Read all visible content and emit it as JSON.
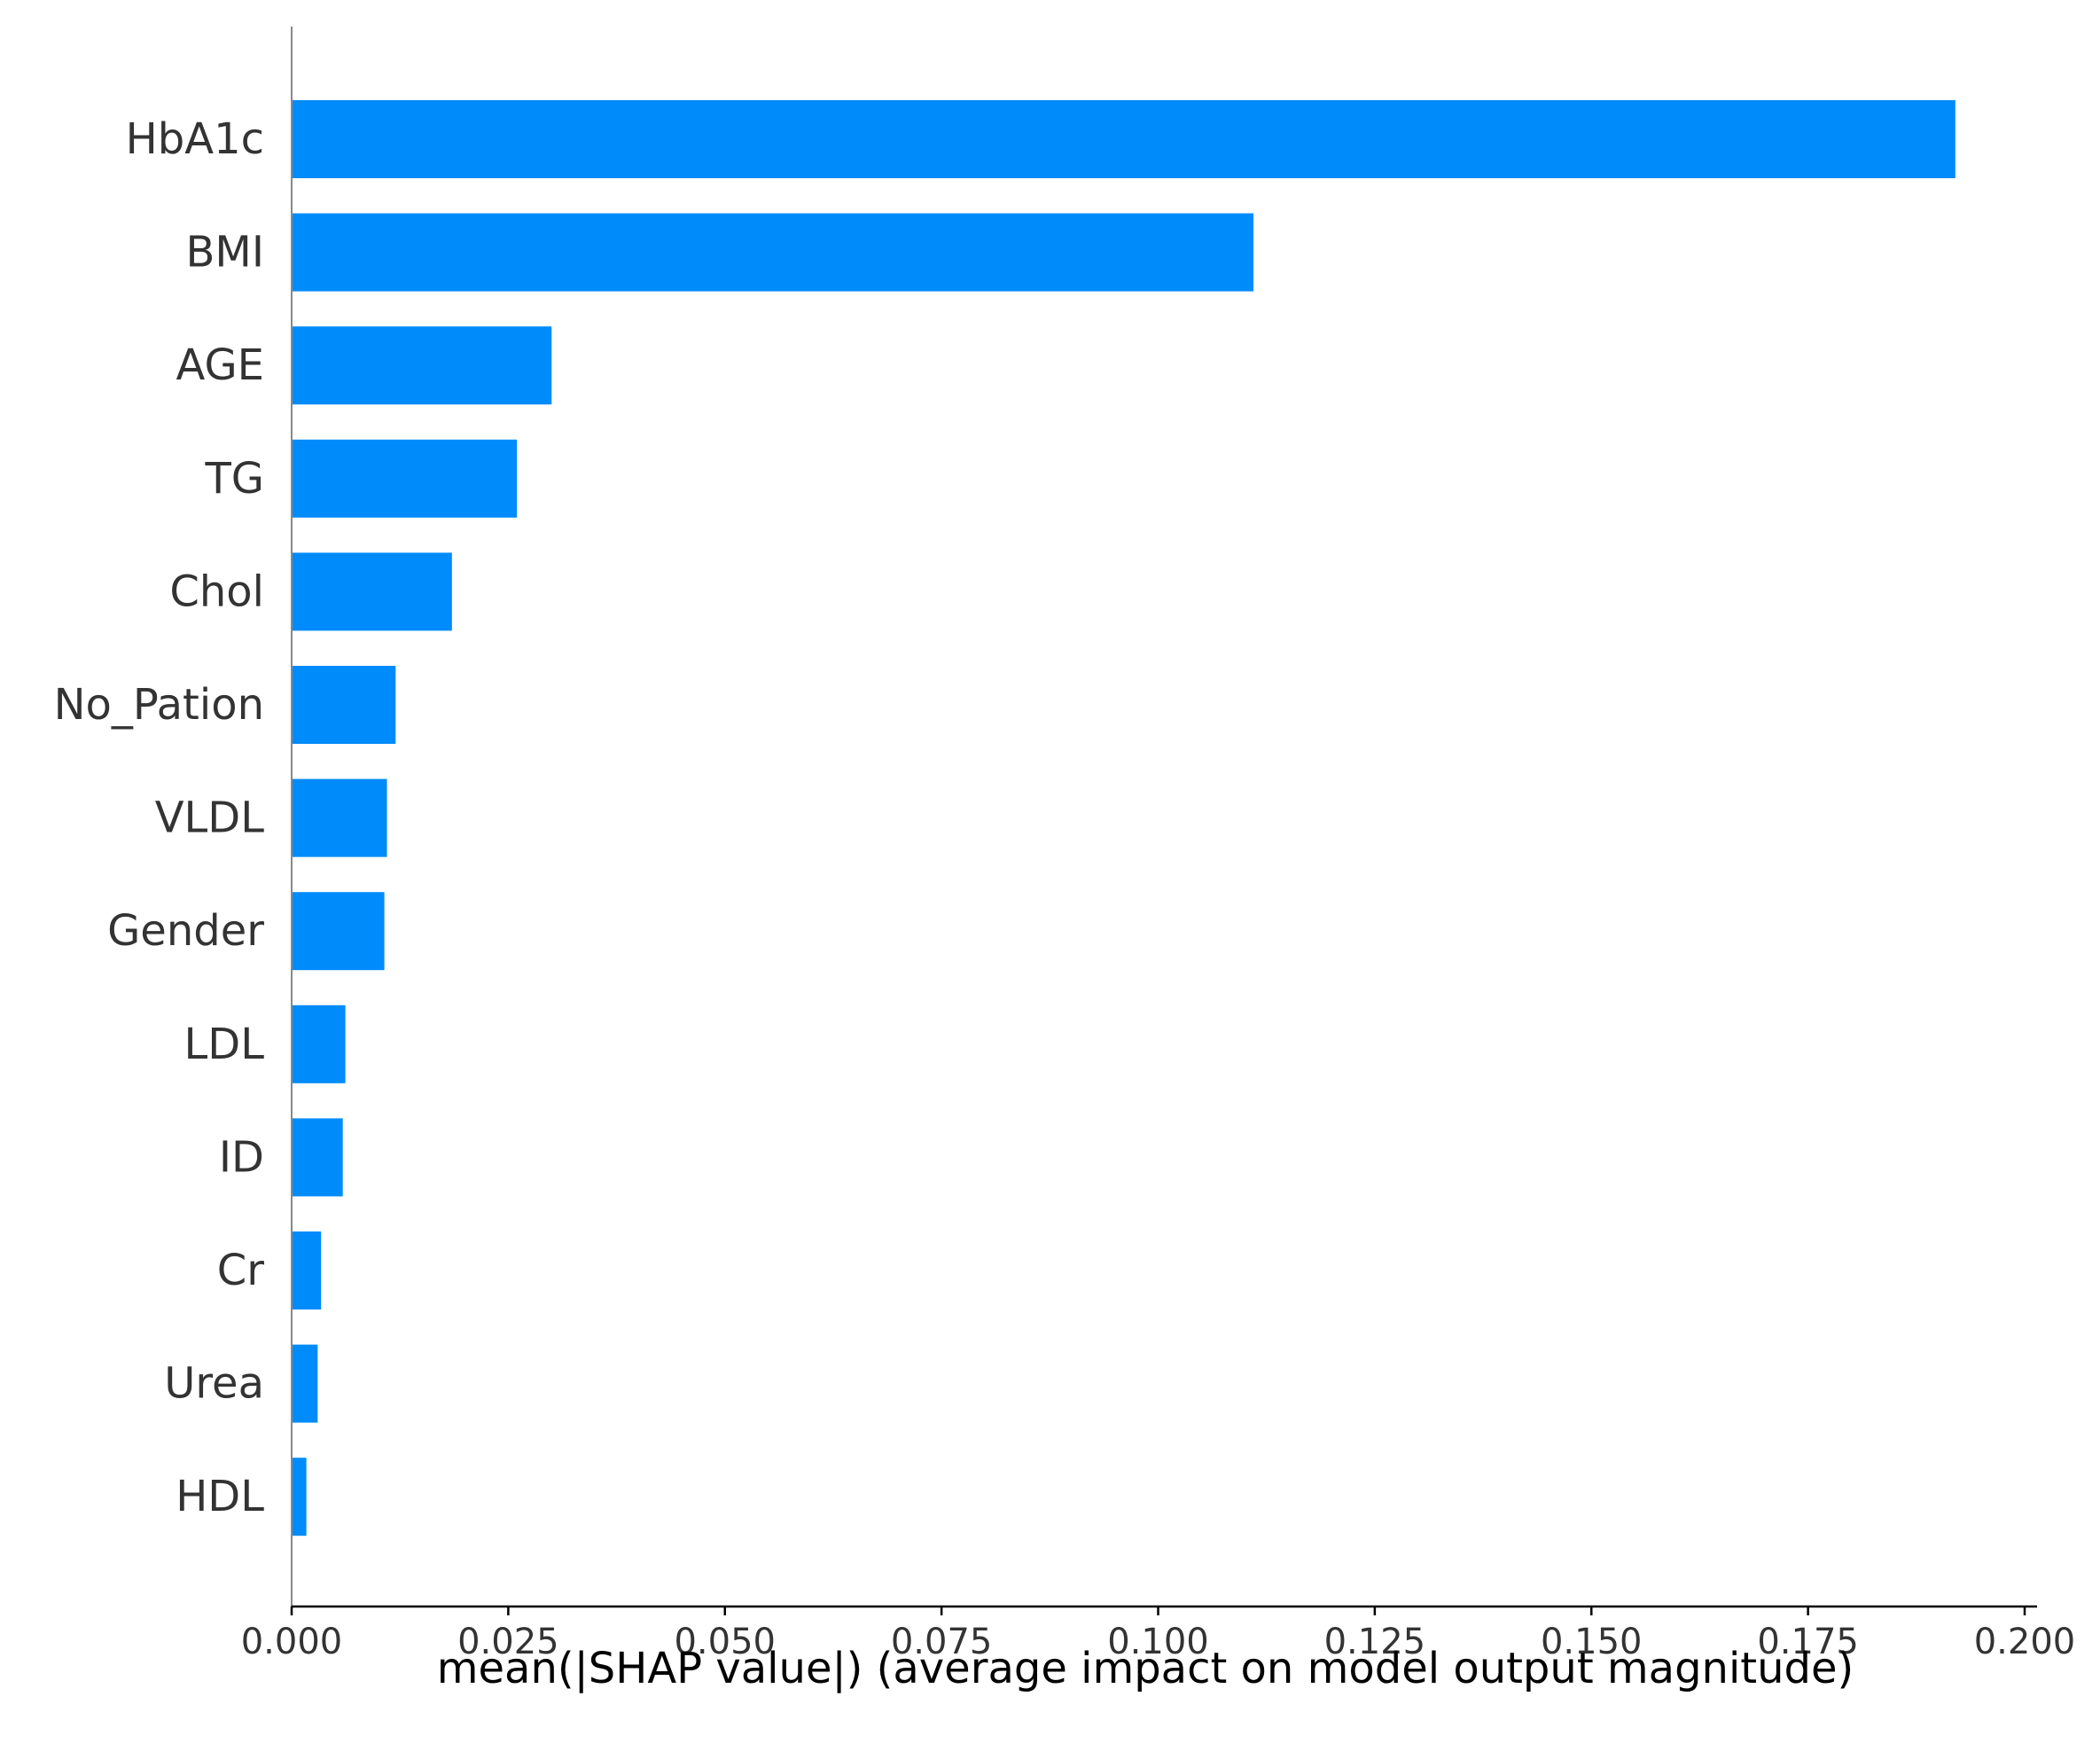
{
  "chart_data": {
    "type": "bar",
    "orientation": "horizontal",
    "title": "",
    "xlabel": "mean(|SHAP value|) (average impact on model output magnitude)",
    "ylabel": "",
    "xlim": [
      0.0,
      0.2
    ],
    "x_ticks": [
      "0.000",
      "0.025",
      "0.050",
      "0.075",
      "0.100",
      "0.125",
      "0.150",
      "0.175",
      "0.200"
    ],
    "grid": false,
    "legend": "none",
    "bar_color": "#008bfb",
    "categories": [
      "HbA1c",
      "BMI",
      "AGE",
      "TG",
      "Chol",
      "No_Pation",
      "VLDL",
      "Gender",
      "LDL",
      "ID",
      "Cr",
      "Urea",
      "HDL"
    ],
    "values": [
      0.192,
      0.111,
      0.03,
      0.026,
      0.0185,
      0.012,
      0.011,
      0.0107,
      0.0062,
      0.0059,
      0.0034,
      0.003,
      0.0017
    ]
  }
}
